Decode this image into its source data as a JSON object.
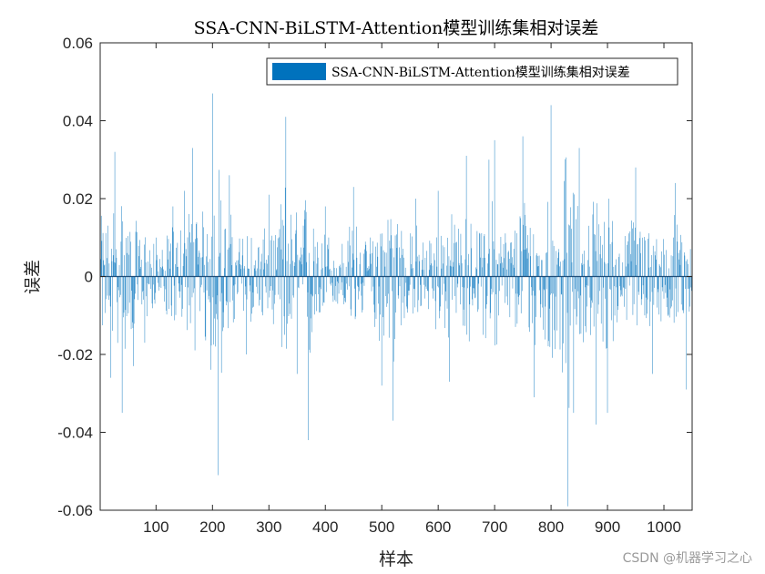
{
  "chart_data": {
    "type": "bar",
    "title": "SSA-CNN-BiLSTM-Attention模型训练集相对误差",
    "xlabel": "样本",
    "ylabel": "误差",
    "xlim": [
      1,
      1050
    ],
    "ylim": [
      -0.06,
      0.06
    ],
    "x_ticks": [
      100,
      200,
      300,
      400,
      500,
      600,
      700,
      800,
      900,
      1000
    ],
    "y_ticks": [
      -0.06,
      -0.04,
      -0.02,
      0,
      0.02,
      0.04,
      0.06
    ],
    "y_tick_labels": [
      "-0.06",
      "-0.04",
      "-0.02",
      "0",
      "0.02",
      "0.04",
      "0.06"
    ],
    "legend": {
      "position": "top-right",
      "entries": [
        "SSA-CNN-BiLSTM-Attention模型训练集相对误差"
      ]
    },
    "grid": false,
    "bar_color": "#0072BD",
    "series": [
      {
        "name": "SSA-CNN-BiLSTM-Attention模型训练集相对误差",
        "n_samples": 1050,
        "sampled_x": [
          1,
          20,
          27,
          40,
          60,
          80,
          100,
          130,
          150,
          165,
          200,
          210,
          230,
          260,
          300,
          330,
          350,
          370,
          400,
          450,
          500,
          520,
          560,
          600,
          620,
          650,
          690,
          700,
          750,
          770,
          800,
          830,
          840,
          850,
          880,
          900,
          950,
          980,
          1020,
          1040
        ],
        "sampled_y": [
          0.023,
          -0.026,
          0.032,
          -0.035,
          -0.023,
          -0.017,
          0.01,
          0.018,
          0.022,
          0.033,
          0.047,
          -0.051,
          0.026,
          -0.02,
          0.021,
          0.041,
          -0.025,
          -0.042,
          0.018,
          0.023,
          -0.028,
          -0.037,
          0.02,
          0.022,
          -0.027,
          0.031,
          0.03,
          0.035,
          0.036,
          -0.031,
          0.044,
          -0.059,
          -0.035,
          0.033,
          -0.038,
          -0.035,
          0.028,
          -0.025,
          0.024,
          -0.029
        ]
      }
    ]
  },
  "watermark": "CSDN @机器学习之心"
}
